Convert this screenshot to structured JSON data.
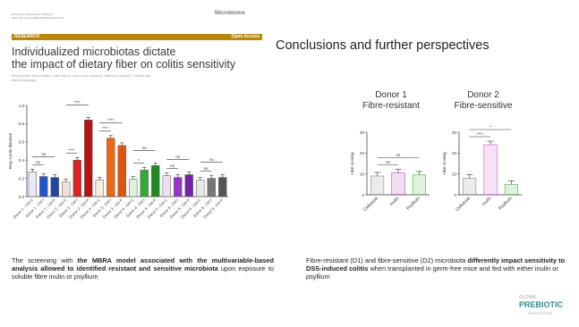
{
  "paper": {
    "meta_line1": "Research in Microbiome (2023) 11",
    "meta_line2": "https://doi.org/10.1186/s40168-023-01734-4",
    "journal": "Microbiome",
    "section": "RESEARCH",
    "access": "Open Access",
    "title_line1": "Individualized microbiotas dictate",
    "title_line2": "the impact of dietary fiber on colitis sensitivity",
    "authors_line1": "Erica Armetta, Mirco Bettini, Lucilla Vignoli, Yuhua Han, Andrea D. Patterson, Andrew T. Gewirtz and",
    "authors_line2": "Benoit Chassaing"
  },
  "slide_title": "Conclusions and further perspectives",
  "donor1": {
    "line1": "Donor 1",
    "line2": "Fibre-resistant"
  },
  "donor2": {
    "line1": "Donor 2",
    "line2": "Fibre-sensitive"
  },
  "caption_left": {
    "p1": "The screening with ",
    "b1": "the MBRA model associated with the multivariable-based analysis allowed to identified resistant and sensitive microbiota",
    "p2": " upon exposure to soluble fibre inulin or psyllium"
  },
  "caption_right": {
    "p1": "Fibre-resistant (D1) and fibre-sensitive (D2) microbiota ",
    "b1": "differently impact sensitivity to DSS-induced colitis",
    "p2": " when transplanted in germ-free mice and fed with either inulin or psyllium"
  },
  "logo": {
    "line1": "GLOBAL",
    "line2": "PREBIOTIC",
    "line3": "ASSOCIATION"
  },
  "colors": {
    "accent": "#b8860b",
    "donor2_bar": "#cc33cc",
    "fibre_green": "#33aa33"
  },
  "chart_data": [
    {
      "type": "bar",
      "ylabel": "Bray-Curtis distance",
      "ylim": [
        0,
        1.0
      ],
      "yticks": [
        "0.0",
        "0.2",
        "0.4",
        "0.6",
        "0.8",
        "1.0"
      ],
      "categories": [
        "Donor 1 - Ctrl C",
        "Donor 1 - Ctrl I",
        "Donor 1 - Ctrl P",
        "Donor 2 - Ctrl C",
        "Donor 2 - Ctrl I",
        "Donor 2 - Ctrl P",
        "Donor 3 - Ctrl C",
        "Donor 3 - Ctrl I",
        "Donor 3 - Ctrl P",
        "Donor 4 - Ctrl C",
        "Donor 4 - Ctrl I",
        "Donor 4 - Ctrl P",
        "Donor 5 - Ctrl C",
        "Donor 5 - Ctrl I",
        "Donor 5 - Ctrl P",
        "Donor 6 - Ctrl C",
        "Donor 6 - Ctrl I",
        "Donor 6 - Ctrl P"
      ],
      "values": [
        0.27,
        0.22,
        0.21,
        0.16,
        0.4,
        0.84,
        0.18,
        0.64,
        0.56,
        0.19,
        0.29,
        0.34,
        0.23,
        0.21,
        0.24,
        0.18,
        0.2,
        0.21
      ],
      "colors": [
        "#e8e8f8",
        "#2255cc",
        "#2244aa",
        "#f0e0e0",
        "#dd2222",
        "#bb1111",
        "#f8ece0",
        "#ee6611",
        "#dd5511",
        "#e0f0e0",
        "#33aa33",
        "#228822",
        "#ece0f0",
        "#9933cc",
        "#7722aa",
        "#e8e8e8",
        "#777777",
        "#555555"
      ],
      "significance": [
        {
          "label": "ns",
          "from": 0,
          "to": 1
        },
        {
          "label": "ns",
          "from": 0,
          "to": 2
        },
        {
          "label": "****",
          "from": 3,
          "to": 4
        },
        {
          "label": "****",
          "from": 3,
          "to": 5
        },
        {
          "label": "****",
          "from": 6,
          "to": 7
        },
        {
          "label": "****",
          "from": 6,
          "to": 8
        },
        {
          "label": "*",
          "from": 9,
          "to": 10
        },
        {
          "label": "ns",
          "from": 9,
          "to": 11
        },
        {
          "label": "ns",
          "from": 12,
          "to": 13
        },
        {
          "label": "ns",
          "from": 12,
          "to": 14
        },
        {
          "label": "ns",
          "from": 15,
          "to": 16
        },
        {
          "label": "ns",
          "from": 15,
          "to": 17
        }
      ]
    },
    {
      "type": "bar",
      "ylabel": "H&E scoring",
      "ylim": [
        0,
        30
      ],
      "yticks": [
        "0",
        "10",
        "20",
        "30"
      ],
      "categories": [
        "Cellulose",
        "Inulin",
        "Psyllium"
      ],
      "values": [
        9,
        10.5,
        9.5
      ],
      "colors": [
        "#777777",
        "#aa22aa",
        "#22aa22"
      ],
      "significance": [
        {
          "label": "ns",
          "from": 0,
          "to": 1
        },
        {
          "label": "ns",
          "from": 0,
          "to": 2
        }
      ]
    },
    {
      "type": "bar",
      "ylabel": "H&E scoring",
      "ylim": [
        0,
        30
      ],
      "yticks": [
        "0",
        "10",
        "20",
        "30"
      ],
      "categories": [
        "Cellulose",
        "Inulin",
        "Psyllium"
      ],
      "values": [
        8,
        24,
        5
      ],
      "colors": [
        "#777777",
        "#cc33cc",
        "#22aa22"
      ],
      "significance": [
        {
          "label": "****",
          "from": 0,
          "to": 1
        },
        {
          "label": "*",
          "from": 0,
          "to": 2
        }
      ]
    }
  ]
}
